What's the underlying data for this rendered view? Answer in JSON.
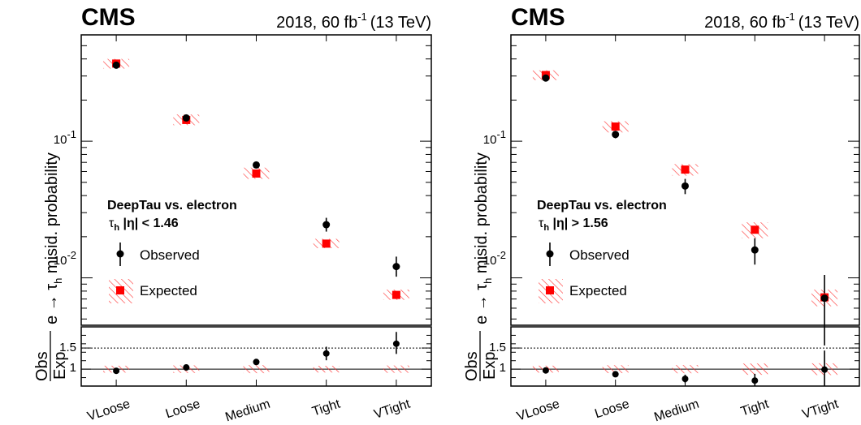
{
  "chart_data": [
    {
      "type": "scatter",
      "experiment": "CMS",
      "lumi_text": "2018, 60 fb",
      "lumi_exp": "-1",
      "energy_text": "(13 TeV)",
      "ylabel": "e → τ_h misid. probability",
      "ratio_ylabel_num": "Obs",
      "ratio_ylabel_den": "Exp",
      "yscale": "log",
      "ylim": [
        0.0045,
        0.6
      ],
      "ratio_ylim": [
        0.6,
        2.0
      ],
      "ratio_ref_lines": [
        1.0,
        1.5
      ],
      "ytick_labels": [
        "10",
        "10"
      ],
      "ytick_exps": [
        "-2",
        "-1"
      ],
      "ratio_tick_labels": [
        "1",
        "1.5"
      ],
      "categories": [
        "VLoose",
        "Loose",
        "Medium",
        "Tight",
        "VTight"
      ],
      "annotation_title": "DeepTau vs. electron",
      "annotation_region_tau": "τ",
      "annotation_region_h": "h",
      "annotation_region_rest": " |η| < 1.46",
      "legend": [
        {
          "label": "Observed",
          "marker": "black-circle"
        },
        {
          "label": "Expected",
          "marker": "red-square-hatched"
        }
      ],
      "colors": {
        "observed": "#000000",
        "expected": "#ff0000",
        "hatch": "#ff3333"
      },
      "series": [
        {
          "name": "Observed",
          "values": [
            0.36,
            0.148,
            0.067,
            0.0245,
            0.0121
          ],
          "err_low": [
            0.02,
            0.007,
            0.003,
            0.0027,
            0.0019
          ],
          "err_high": [
            0.02,
            0.007,
            0.003,
            0.003,
            0.0022
          ]
        },
        {
          "name": "Expected",
          "values": [
            0.37,
            0.143,
            0.058,
            0.0178,
            0.0075
          ],
          "band_low": [
            0.34,
            0.131,
            0.053,
            0.0165,
            0.0069
          ],
          "band_high": [
            0.4,
            0.157,
            0.064,
            0.0193,
            0.0082
          ]
        },
        {
          "name": "Obs/Exp",
          "values": [
            0.96,
            1.04,
            1.17,
            1.37,
            1.6
          ],
          "err_low": [
            0.05,
            0.06,
            0.06,
            0.16,
            0.24
          ],
          "err_high": [
            0.05,
            0.06,
            0.06,
            0.16,
            0.28
          ]
        }
      ]
    },
    {
      "type": "scatter",
      "experiment": "CMS",
      "lumi_text": "2018, 60 fb",
      "lumi_exp": "-1",
      "energy_text": "(13 TeV)",
      "ylabel": "e → τ_h misid. probability",
      "ratio_ylabel_num": "Obs",
      "ratio_ylabel_den": "Exp",
      "yscale": "log",
      "ylim": [
        0.0045,
        0.6
      ],
      "ratio_ylim": [
        0.6,
        2.0
      ],
      "ratio_ref_lines": [
        1.0,
        1.5
      ],
      "ytick_labels": [
        "10",
        "10"
      ],
      "ytick_exps": [
        "-2",
        "-1"
      ],
      "ratio_tick_labels": [
        "1",
        "1.5"
      ],
      "categories": [
        "VLoose",
        "Loose",
        "Medium",
        "Tight",
        "VTight"
      ],
      "annotation_title": "DeepTau vs. electron",
      "annotation_region_tau": "τ",
      "annotation_region_h": "h",
      "annotation_region_rest": " |η| > 1.56",
      "legend": [
        {
          "label": "Observed",
          "marker": "black-circle"
        },
        {
          "label": "Expected",
          "marker": "red-square-hatched"
        }
      ],
      "colors": {
        "observed": "#000000",
        "expected": "#ff0000",
        "hatch": "#ff3333"
      },
      "series": [
        {
          "name": "Observed",
          "values": [
            0.29,
            0.112,
            0.047,
            0.016,
            0.0071
          ],
          "err_low": [
            0.015,
            0.007,
            0.006,
            0.0035,
            0.0039
          ],
          "err_high": [
            0.015,
            0.007,
            0.006,
            0.0035,
            0.0034
          ]
        },
        {
          "name": "Expected",
          "values": [
            0.305,
            0.128,
            0.062,
            0.0225,
            0.0072
          ],
          "band_low": [
            0.28,
            0.116,
            0.056,
            0.0195,
            0.0062
          ],
          "band_high": [
            0.33,
            0.14,
            0.068,
            0.0255,
            0.0082
          ]
        },
        {
          "name": "Obs/Exp",
          "values": [
            0.97,
            0.88,
            0.77,
            0.73,
            0.99
          ],
          "err_low": [
            0.05,
            0.05,
            0.1,
            0.16,
            0.55
          ],
          "err_high": [
            0.05,
            0.05,
            0.1,
            0.16,
            0.45
          ]
        }
      ]
    }
  ]
}
